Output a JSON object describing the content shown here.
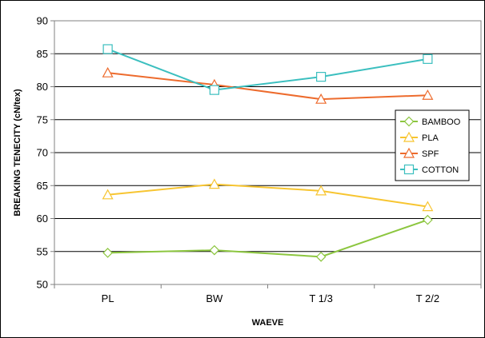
{
  "chart_data": {
    "type": "line",
    "title": "",
    "xlabel": "WAEVE",
    "ylabel": "BREAKING TENECITY (cN/tex)",
    "categories": [
      "PL",
      "BW",
      "T 1/3",
      "T 2/2"
    ],
    "ylim": [
      50,
      90
    ],
    "yticks": [
      "50",
      "55",
      "60",
      "65",
      "70",
      "75",
      "80",
      "85",
      "90"
    ],
    "grid": "horizontal",
    "legend_position": "right",
    "series": [
      {
        "name": "BAMBOO",
        "values": [
          54.8,
          55.2,
          54.2,
          59.8
        ],
        "color": "#8cc63f",
        "marker": "diamond"
      },
      {
        "name": "PLA",
        "values": [
          63.6,
          65.2,
          64.2,
          61.8
        ],
        "color": "#f7c531",
        "marker": "triangle"
      },
      {
        "name": "SPF",
        "values": [
          82.1,
          80.3,
          78.1,
          78.7
        ],
        "color": "#ed6b2d",
        "marker": "triangle"
      },
      {
        "name": "COTTON",
        "values": [
          85.7,
          79.5,
          81.5,
          84.2
        ],
        "color": "#3bbfbf",
        "marker": "square"
      }
    ]
  }
}
